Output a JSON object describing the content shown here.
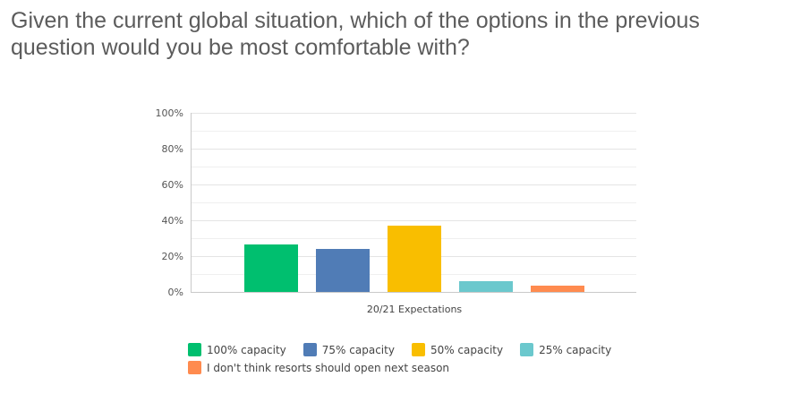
{
  "question": {
    "title": "Given the current global situation, which of the options in the previous question would you be most comfortable with?"
  },
  "chart_data": {
    "type": "bar",
    "categories": [
      "20/21 Expectations"
    ],
    "series": [
      {
        "name": "100% capacity",
        "values": [
          26.5
        ],
        "color": "#00bf6f"
      },
      {
        "name": "75% capacity",
        "values": [
          24
        ],
        "color": "#507cb6"
      },
      {
        "name": "50% capacity",
        "values": [
          37
        ],
        "color": "#f9be00"
      },
      {
        "name": "25% capacity",
        "values": [
          6
        ],
        "color": "#6bc8cd"
      },
      {
        "name": "I don't think resorts should open next season",
        "values": [
          3.5
        ],
        "color": "#ff8b4f"
      }
    ],
    "y_ticks": [
      "0%",
      "20%",
      "40%",
      "60%",
      "80%",
      "100%"
    ],
    "ylim": [
      0,
      100
    ],
    "grid": true,
    "legend_position": "bottom",
    "xlabel": "",
    "ylabel": ""
  }
}
